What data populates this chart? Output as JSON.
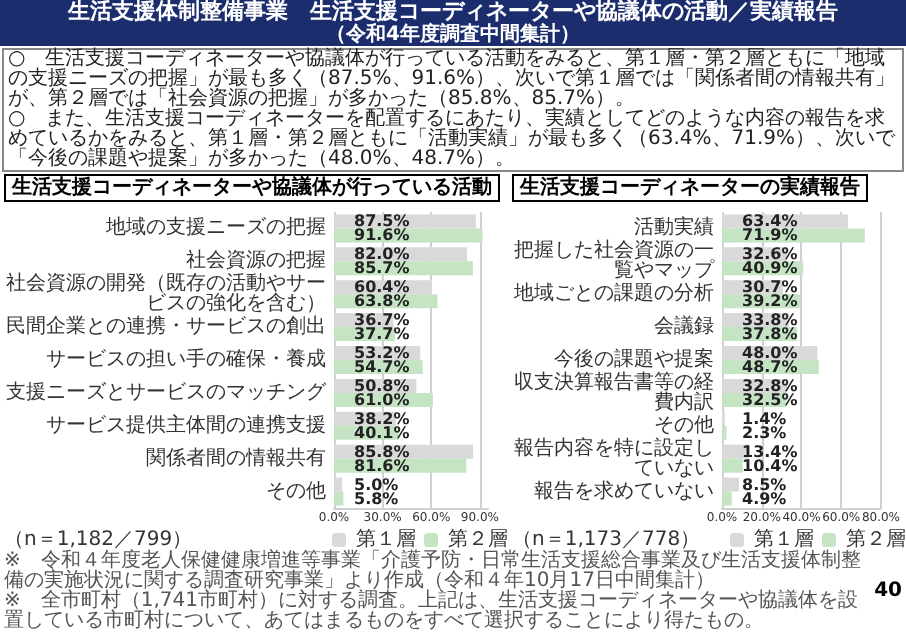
{
  "chart_data": [
    {
      "type": "other",
      "title": "生活支援体制整備事業　生活支援コーディネーターや協議体の活動／実績報告",
      "subtitle": "（令和4年度調査中間集計）",
      "annotations": [
        "○　生活支援コーディネーターや協議体が行っている活動をみると、第１層・第２層ともに「地域の支援ニーズの把握」が最も多く（87.5%、91.6%）、次いで第１層では「関係者間の情報共有」が、第２層では「社会資源の把握」が多かった（85.8%、85.7%）。",
        "○　また、生活支援コーディネーターを配置するにあたり、実績としてどのような内容の報告を求めているかをみると、第１層・第２層ともに「活動実績」が最も多く（63.4%、71.9%）、次いで「今後の課題や提案」が多かった（48.0%、48.7%）。",
        "※　令和４年度老人保健健康増進等事業「介護予防・日常生活支援総合事業及び生活支援体制整備の実施状況に関する調査研究事業」より作成（令和４年10月17日中間集計）",
        "※　全市町村（1,741市町村）に対する調査。上記は、生活支援コーディネーターや協議体を設置している市町村について、あてはまるものをすべて選択することにより得たもの。",
        "40"
      ]
    },
    {
      "type": "bar",
      "orientation": "horizontal",
      "title": "生活支援コーディネーターや協議体が行っている活動",
      "categories": [
        "地域の支援ニーズの把握",
        "社会資源の把握",
        "社会資源の開発（既存の活動やサービスの強化を含む）",
        "民間企業との連携・サービスの創出",
        "サービスの担い手の確保・養成",
        "支援ニーズとサービスのマッチング",
        "サービス提供主体間の連携支援",
        "関係者間の情報共有",
        "その他"
      ],
      "series": [
        {
          "name": "第１層",
          "color": "#d9d9d9",
          "values": [
            87.5,
            82.0,
            60.4,
            36.7,
            53.2,
            50.8,
            38.2,
            85.8,
            5.0
          ],
          "value_labels": [
            "87.5%",
            "82.0%",
            "60.4%",
            "36.7%",
            "53.2%",
            "50.8%",
            "38.2%",
            "85.8%",
            "5.0%"
          ]
        },
        {
          "name": "第２層",
          "color": "#c4e4c4",
          "values": [
            91.6,
            85.7,
            63.8,
            37.7,
            54.7,
            61.0,
            40.1,
            81.6,
            5.8
          ],
          "value_labels": [
            "91.6%",
            "85.7%",
            "63.8%",
            "37.7%",
            "54.7%",
            "61.0%",
            "40.1%",
            "81.6%",
            "5.8%"
          ]
        }
      ],
      "xlim": [
        0,
        95
      ],
      "xticks": [
        {
          "value": 0,
          "label": "0.0%"
        },
        {
          "value": 30,
          "label": "30.0%"
        },
        {
          "value": 60,
          "label": "60.0%"
        },
        {
          "value": 90,
          "label": "90.0%"
        }
      ],
      "grid": "x",
      "legend": "bottom right",
      "annotations": [
        "（n＝1,182／799）"
      ]
    },
    {
      "type": "bar",
      "orientation": "horizontal",
      "title": "生活支援コーディネーターの実績報告",
      "categories": [
        "活動実績",
        "把握した社会資源の一覧やマップ",
        "地域ごとの課題の分析",
        "会議録",
        "今後の課題や提案",
        "収支決算報告書等の経費内訳",
        "その他",
        "報告内容を特に設定していない",
        "報告を求めていない"
      ],
      "series": [
        {
          "name": "第１層",
          "color": "#d9d9d9",
          "values": [
            63.4,
            32.6,
            30.7,
            33.8,
            48.0,
            32.8,
            1.4,
            13.4,
            8.5
          ],
          "value_labels": [
            "63.4%",
            "32.6%",
            "30.7%",
            "33.8%",
            "48.0%",
            "32.8%",
            "1.4%",
            "13.4%",
            "8.5%"
          ]
        },
        {
          "name": "第２層",
          "color": "#c4e4c4",
          "values": [
            71.9,
            40.9,
            39.2,
            37.8,
            48.7,
            32.5,
            2.3,
            10.4,
            4.9
          ],
          "value_labels": [
            "71.9%",
            "40.9%",
            "39.2%",
            "37.8%",
            "48.7%",
            "32.5%",
            "2.3%",
            "10.4%",
            "4.9%"
          ]
        }
      ],
      "xlim": [
        0,
        80
      ],
      "xticks": [
        {
          "value": 0,
          "label": "0.0%"
        },
        {
          "value": 20,
          "label": "20.0%"
        },
        {
          "value": 40,
          "label": "40.0%"
        },
        {
          "value": 60,
          "label": "60.0%"
        },
        {
          "value": 80,
          "label": "80.0%"
        }
      ],
      "grid": "x",
      "legend": "bottom right",
      "annotations": [
        "（n＝1,173／778）"
      ]
    }
  ]
}
